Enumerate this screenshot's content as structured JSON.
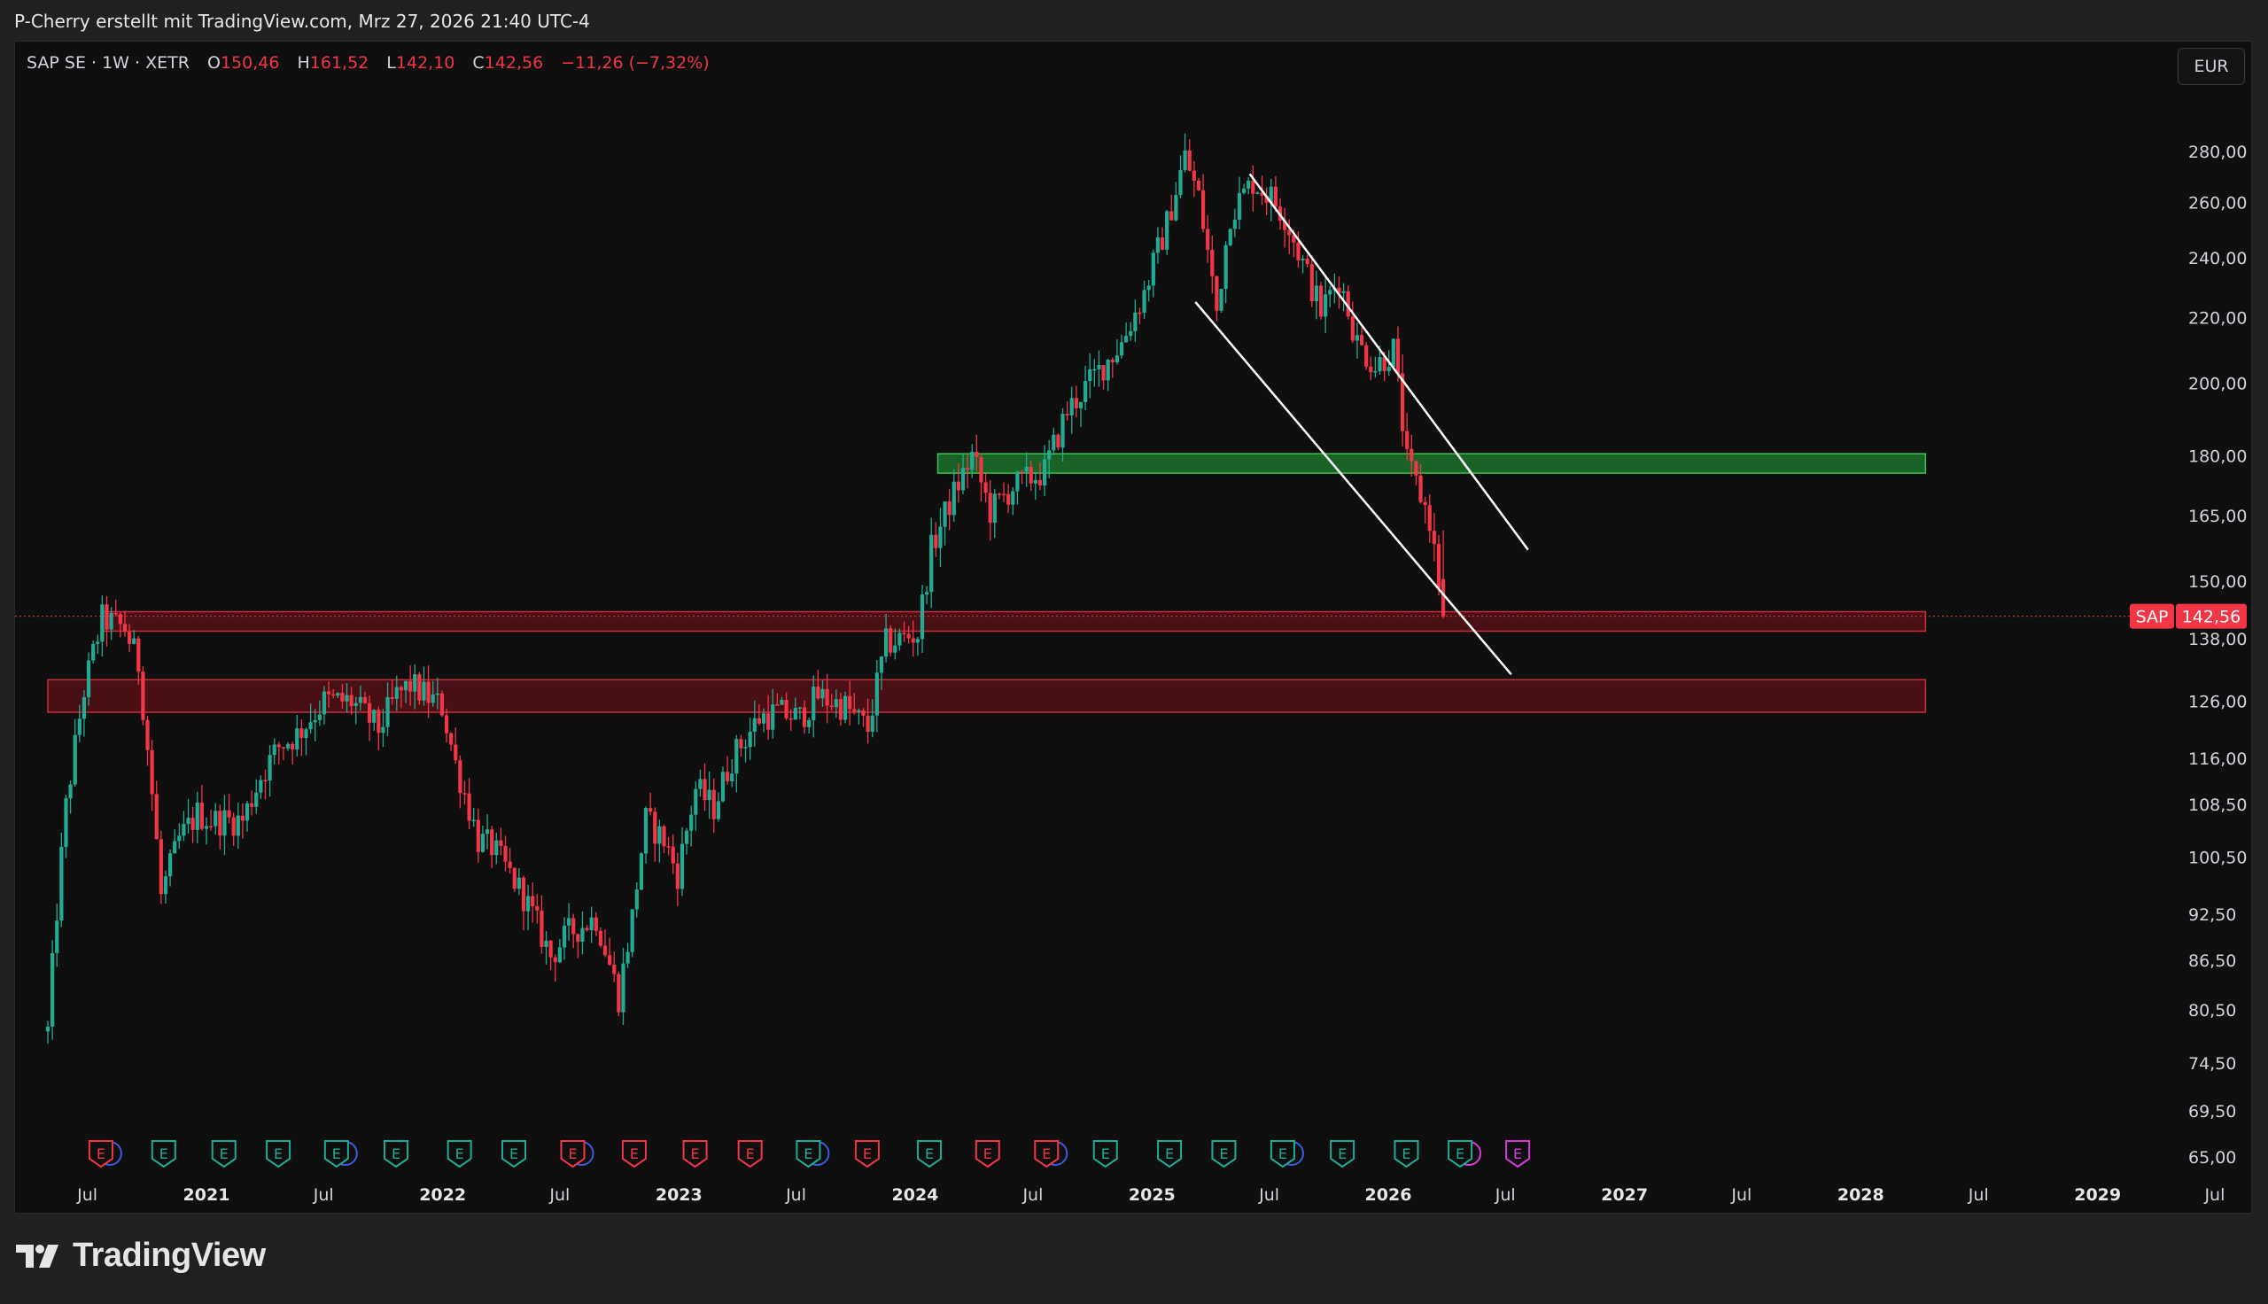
{
  "caption": "P-Cherry erstellt mit TradingView.com, Mrz 27, 2026 21:40 UTC-4",
  "header": {
    "symbol": "SAP SE · 1W · XETR",
    "open_label": "O",
    "open": "150,46",
    "high_label": "H",
    "high": "161,52",
    "low_label": "L",
    "low": "142,10",
    "close_label": "C",
    "close": "142,56",
    "change": "−11,26 (−7,32%)"
  },
  "currency": "EUR",
  "brand": "TradingView",
  "colors": {
    "up": "#22ab94",
    "down": "#f23645",
    "zone_red": "#b22833",
    "zone_green": "#22a83a",
    "background": "#0f0f0f"
  },
  "chart_data": {
    "type": "candlestick",
    "symbol": "SAP",
    "interval": "1W",
    "y_scale": "log",
    "y_range": [
      65,
      300
    ],
    "y_ticks": [
      {
        "v": 280,
        "label": "280,00"
      },
      {
        "v": 260,
        "label": "260,00"
      },
      {
        "v": 240,
        "label": "240,00"
      },
      {
        "v": 220,
        "label": "220,00"
      },
      {
        "v": 200,
        "label": "200,00"
      },
      {
        "v": 180,
        "label": "180,00"
      },
      {
        "v": 165,
        "label": "165,00"
      },
      {
        "v": 150,
        "label": "150,00"
      },
      {
        "v": 138,
        "label": "138,00"
      },
      {
        "v": 126,
        "label": "126,00"
      },
      {
        "v": 116,
        "label": "116,00"
      },
      {
        "v": 108.5,
        "label": "108,50"
      },
      {
        "v": 100.5,
        "label": "100,50"
      },
      {
        "v": 92.5,
        "label": "92,50"
      },
      {
        "v": 86.5,
        "label": "86,50"
      },
      {
        "v": 80.5,
        "label": "80,50"
      },
      {
        "v": 74.5,
        "label": "74,50"
      },
      {
        "v": 69.5,
        "label": "69,50"
      },
      {
        "v": 65,
        "label": "65,00"
      }
    ],
    "x_range": [
      "2020-05-01",
      "2029-10-15"
    ],
    "x_ticks": [
      {
        "date": "2020-07-01",
        "label": "Jul",
        "bold": false
      },
      {
        "date": "2021-01-01",
        "label": "2021",
        "bold": true
      },
      {
        "date": "2021-07-01",
        "label": "Jul",
        "bold": false
      },
      {
        "date": "2022-01-01",
        "label": "2022",
        "bold": true
      },
      {
        "date": "2022-07-01",
        "label": "Jul",
        "bold": false
      },
      {
        "date": "2023-01-01",
        "label": "2023",
        "bold": true
      },
      {
        "date": "2023-07-01",
        "label": "Jul",
        "bold": false
      },
      {
        "date": "2024-01-01",
        "label": "2024",
        "bold": true
      },
      {
        "date": "2024-07-01",
        "label": "Jul",
        "bold": false
      },
      {
        "date": "2025-01-01",
        "label": "2025",
        "bold": true
      },
      {
        "date": "2025-07-01",
        "label": "Jul",
        "bold": false
      },
      {
        "date": "2026-01-01",
        "label": "2026",
        "bold": true
      },
      {
        "date": "2026-07-01",
        "label": "Jul",
        "bold": false
      },
      {
        "date": "2027-01-01",
        "label": "2027",
        "bold": true
      },
      {
        "date": "2027-07-01",
        "label": "Jul",
        "bold": false
      },
      {
        "date": "2028-01-01",
        "label": "2028",
        "bold": true
      },
      {
        "date": "2028-07-01",
        "label": "Jul",
        "bold": false
      },
      {
        "date": "2029-01-01",
        "label": "2029",
        "bold": true
      },
      {
        "date": "2029-07-01",
        "label": "Jul",
        "bold": false
      }
    ],
    "price_path": [
      [
        "2020-05-01",
        78
      ],
      [
        "2020-05-29",
        108
      ],
      [
        "2020-06-26",
        128
      ],
      [
        "2020-07-24",
        142
      ],
      [
        "2020-08-28",
        140
      ],
      [
        "2020-09-18",
        133
      ],
      [
        "2020-10-23",
        95
      ],
      [
        "2020-11-20",
        103
      ],
      [
        "2020-12-18",
        107
      ],
      [
        "2021-01-08",
        106
      ],
      [
        "2021-02-26",
        106
      ],
      [
        "2021-03-26",
        113
      ],
      [
        "2021-04-23",
        118
      ],
      [
        "2021-05-21",
        120
      ],
      [
        "2021-07-02",
        126
      ],
      [
        "2021-08-13",
        126
      ],
      [
        "2021-09-24",
        121
      ],
      [
        "2021-10-22",
        127
      ],
      [
        "2021-11-12",
        129
      ],
      [
        "2021-12-31",
        125
      ],
      [
        "2022-01-21",
        115
      ],
      [
        "2022-02-25",
        103
      ],
      [
        "2022-03-18",
        102
      ],
      [
        "2022-05-06",
        95
      ],
      [
        "2022-06-17",
        87
      ],
      [
        "2022-07-15",
        90
      ],
      [
        "2022-08-26",
        92
      ],
      [
        "2022-09-30",
        82
      ],
      [
        "2022-10-21",
        92
      ],
      [
        "2022-11-11",
        106
      ],
      [
        "2022-12-09",
        103
      ],
      [
        "2022-12-30",
        98
      ],
      [
        "2023-01-27",
        111
      ],
      [
        "2023-02-24",
        108
      ],
      [
        "2023-03-24",
        116
      ],
      [
        "2023-05-05",
        123
      ],
      [
        "2023-06-02",
        124
      ],
      [
        "2023-07-07",
        123
      ],
      [
        "2023-08-04",
        127
      ],
      [
        "2023-09-15",
        125
      ],
      [
        "2023-10-20",
        121
      ],
      [
        "2023-11-17",
        137
      ],
      [
        "2024-01-05",
        139
      ],
      [
        "2024-01-26",
        157
      ],
      [
        "2024-02-23",
        168
      ],
      [
        "2024-03-29",
        180
      ],
      [
        "2024-04-26",
        166
      ],
      [
        "2024-05-31",
        172
      ],
      [
        "2024-07-19",
        176
      ],
      [
        "2024-08-23",
        192
      ],
      [
        "2024-10-04",
        202
      ],
      [
        "2024-11-15",
        212
      ],
      [
        "2024-12-20",
        228
      ],
      [
        "2025-01-24",
        252
      ],
      [
        "2025-02-21",
        278
      ],
      [
        "2025-03-14",
        262
      ],
      [
        "2025-04-11",
        222
      ],
      [
        "2025-05-02",
        256
      ],
      [
        "2025-06-06",
        268
      ],
      [
        "2025-07-04",
        262
      ],
      [
        "2025-07-25",
        255
      ],
      [
        "2025-08-22",
        238
      ],
      [
        "2025-09-19",
        222
      ],
      [
        "2025-10-17",
        233
      ],
      [
        "2025-11-14",
        212
      ],
      [
        "2025-12-12",
        205
      ],
      [
        "2026-01-09",
        210
      ],
      [
        "2026-01-30",
        178
      ],
      [
        "2026-02-20",
        170
      ],
      [
        "2026-03-06",
        164
      ],
      [
        "2026-03-27",
        142.56
      ]
    ],
    "zones": [
      {
        "type": "support",
        "from": "2020-05-01",
        "to": "2028-04-10",
        "low": 124,
        "high": 130,
        "color": "#b22833"
      },
      {
        "type": "support",
        "from": "2020-07-24",
        "to": "2028-04-10",
        "low": 139.5,
        "high": 143.5,
        "color": "#b22833"
      },
      {
        "type": "resistance",
        "from": "2024-02-05",
        "to": "2028-04-10",
        "low": 175.5,
        "high": 180.5,
        "color": "#22a83a"
      }
    ],
    "trendlines": [
      {
        "from": [
          "2025-06-01",
          271
        ],
        "to": [
          "2026-08-05",
          157
        ]
      },
      {
        "from": [
          "2025-03-09",
          225
        ],
        "to": [
          "2026-07-10",
          131
        ]
      }
    ],
    "last_price": {
      "symbol": "SAP",
      "value": 142.56,
      "label": "142,56"
    },
    "earnings_markers": [
      {
        "date": "2020-07-22",
        "label": "E",
        "kind": "miss",
        "extra": "D"
      },
      {
        "date": "2020-10-27",
        "label": "E",
        "kind": "beat"
      },
      {
        "date": "2021-01-28",
        "label": "E",
        "kind": "beat"
      },
      {
        "date": "2021-04-22",
        "label": "E",
        "kind": "beat"
      },
      {
        "date": "2021-07-21",
        "label": "E",
        "kind": "beat",
        "extra": "D"
      },
      {
        "date": "2021-10-21",
        "label": "E",
        "kind": "beat"
      },
      {
        "date": "2022-01-27",
        "label": "E",
        "kind": "beat"
      },
      {
        "date": "2022-04-21",
        "label": "E",
        "kind": "beat"
      },
      {
        "date": "2022-07-21",
        "label": "E",
        "kind": "miss",
        "extra": "D"
      },
      {
        "date": "2022-10-24",
        "label": "E",
        "kind": "miss"
      },
      {
        "date": "2023-01-26",
        "label": "E",
        "kind": "miss"
      },
      {
        "date": "2023-04-21",
        "label": "E",
        "kind": "miss"
      },
      {
        "date": "2023-07-20",
        "label": "E",
        "kind": "beat",
        "extra": "D"
      },
      {
        "date": "2023-10-19",
        "label": "E",
        "kind": "miss"
      },
      {
        "date": "2024-01-23",
        "label": "E",
        "kind": "beat"
      },
      {
        "date": "2024-04-22",
        "label": "E",
        "kind": "miss"
      },
      {
        "date": "2024-07-22",
        "label": "E",
        "kind": "miss",
        "extra": "D"
      },
      {
        "date": "2024-10-21",
        "label": "E",
        "kind": "beat"
      },
      {
        "date": "2025-01-28",
        "label": "E",
        "kind": "beat"
      },
      {
        "date": "2025-04-22",
        "label": "E",
        "kind": "beat"
      },
      {
        "date": "2025-07-22",
        "label": "E",
        "kind": "beat",
        "extra": "D"
      },
      {
        "date": "2025-10-22",
        "label": "E",
        "kind": "beat"
      },
      {
        "date": "2026-01-29",
        "label": "E",
        "kind": "beat"
      },
      {
        "date": "2026-04-22",
        "label": "E",
        "kind": "beat",
        "extra": "S"
      },
      {
        "date": "2026-07-20",
        "label": "E",
        "kind": "upcoming"
      }
    ]
  }
}
